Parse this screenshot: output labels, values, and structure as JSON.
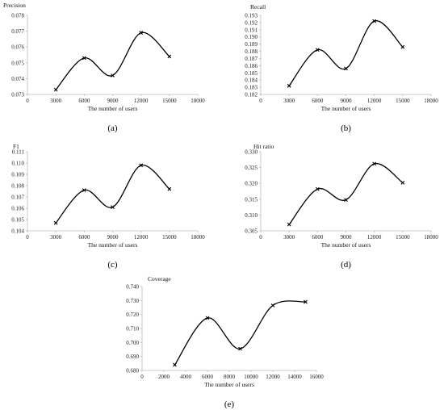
{
  "chart_data": [
    {
      "type": "line",
      "panel": "a",
      "caption": "(a)",
      "ylabel": "Precision",
      "xlabel": "The number of users",
      "xlim": [
        0,
        18000
      ],
      "xticks": [
        0,
        3000,
        6000,
        9000,
        12000,
        15000,
        18000
      ],
      "xtick_labels": [
        "0",
        "3000",
        "6000",
        "9000",
        "12000",
        "15000",
        "18000"
      ],
      "ylim": [
        0.073,
        0.078
      ],
      "yticks": [
        0.073,
        0.074,
        0.075,
        0.076,
        0.077,
        0.078
      ],
      "ytick_labels": [
        "0.073",
        "0.074",
        "0.075",
        "0.076",
        "0.077",
        "0.078"
      ],
      "x": [
        3000,
        6000,
        9000,
        12000,
        15000
      ],
      "series": [
        {
          "values": [
            0.0733,
            0.0753,
            0.0742,
            0.0769,
            0.0754
          ]
        }
      ]
    },
    {
      "type": "line",
      "panel": "b",
      "caption": "(b)",
      "ylabel": "Recall",
      "xlabel": "The number of users",
      "xlim": [
        0,
        18000
      ],
      "xticks": [
        0,
        3000,
        6000,
        9000,
        12000,
        15000,
        18000
      ],
      "xtick_labels": [
        "0",
        "3000",
        "6000",
        "9000",
        "12000",
        "15000",
        "18000"
      ],
      "ylim": [
        0.182,
        0.193
      ],
      "yticks": [
        0.182,
        0.183,
        0.184,
        0.185,
        0.186,
        0.187,
        0.188,
        0.189,
        0.19,
        0.191,
        0.192,
        0.193
      ],
      "ytick_labels": [
        "0.182",
        "0.183",
        "0.184",
        "0.185",
        "0.186",
        "0.187",
        "0.188",
        "0.189",
        "0.190",
        "0.191",
        "0.192",
        "0.193"
      ],
      "x": [
        3000,
        6000,
        9000,
        12000,
        15000
      ],
      "series": [
        {
          "values": [
            0.1832,
            0.1882,
            0.1856,
            0.1922,
            0.1886
          ]
        }
      ]
    },
    {
      "type": "line",
      "panel": "c",
      "caption": "(c)",
      "ylabel": "F1",
      "xlabel": "The number of users",
      "xlim": [
        0,
        18000
      ],
      "xticks": [
        0,
        3000,
        6000,
        9000,
        12000,
        15000,
        18000
      ],
      "xtick_labels": [
        "0",
        "3000",
        "6000",
        "9000",
        "12000",
        "15000",
        "18000"
      ],
      "ylim": [
        0.104,
        0.111
      ],
      "yticks": [
        0.104,
        0.105,
        0.106,
        0.107,
        0.108,
        0.109,
        0.11,
        0.111
      ],
      "ytick_labels": [
        "0.104",
        "0.105",
        "0.106",
        "0.107",
        "0.108",
        "0.109",
        "0.110",
        "0.111"
      ],
      "x": [
        3000,
        6000,
        9000,
        12000,
        15000
      ],
      "series": [
        {
          "values": [
            0.1047,
            0.1076,
            0.1061,
            0.1098,
            0.1077
          ]
        }
      ]
    },
    {
      "type": "line",
      "panel": "d",
      "caption": "(d)",
      "ylabel": "Hit ratio",
      "xlabel": "The number of users",
      "xlim": [
        0,
        18000
      ],
      "xticks": [
        0,
        3000,
        6000,
        9000,
        12000,
        15000,
        18000
      ],
      "xtick_labels": [
        "0",
        "3000",
        "6000",
        "9000",
        "12000",
        "15000",
        "18000"
      ],
      "ylim": [
        0.305,
        0.33
      ],
      "yticks": [
        0.305,
        0.31,
        0.315,
        0.32,
        0.325,
        0.33
      ],
      "ytick_labels": [
        "0.305",
        "0.310",
        "0.315",
        "0.320",
        "0.325",
        "0.330"
      ],
      "x": [
        3000,
        6000,
        9000,
        12000,
        15000
      ],
      "series": [
        {
          "values": [
            0.307,
            0.3182,
            0.3148,
            0.3262,
            0.3202
          ]
        }
      ]
    },
    {
      "type": "line",
      "panel": "e",
      "caption": "(e)",
      "ylabel": "Coverage",
      "xlabel": "The number of users",
      "xlim": [
        0,
        16000
      ],
      "xticks": [
        0,
        2000,
        4000,
        6000,
        8000,
        10000,
        12000,
        14000,
        16000
      ],
      "xtick_labels": [
        "0",
        "2000",
        "4000",
        "6000",
        "8000",
        "10000",
        "12000",
        "14000",
        "16000"
      ],
      "ylim": [
        0.68,
        0.74
      ],
      "yticks": [
        0.68,
        0.69,
        0.7,
        0.71,
        0.72,
        0.73,
        0.74
      ],
      "ytick_labels": [
        "0.680",
        "0.690",
        "0.700",
        "0.710",
        "0.720",
        "0.730",
        "0.740"
      ],
      "x": [
        3000,
        6000,
        9000,
        12000,
        15000
      ],
      "series": [
        {
          "values": [
            0.684,
            0.7175,
            0.6955,
            0.7265,
            0.729
          ]
        }
      ]
    }
  ]
}
